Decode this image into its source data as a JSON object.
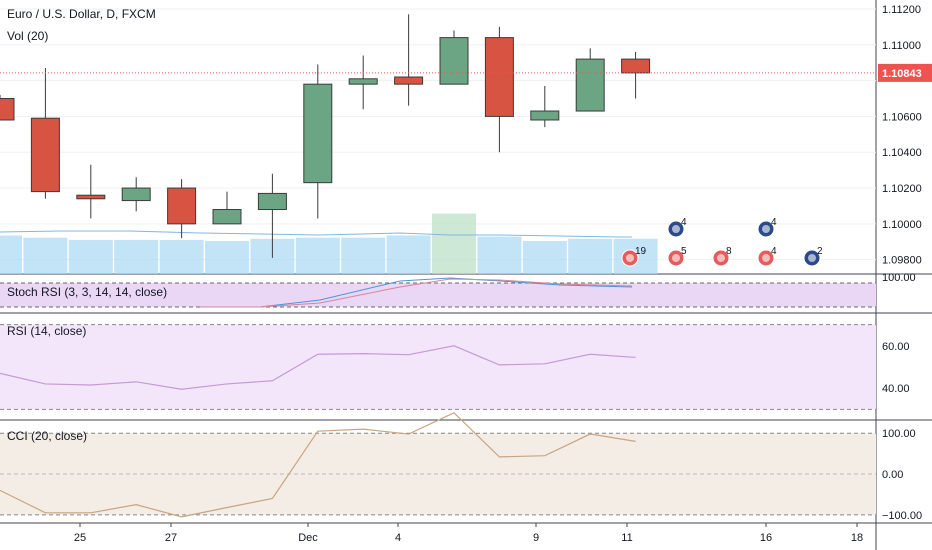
{
  "header": {
    "symbol_title": "Euro / U.S. Dollar, D, FXCM",
    "volume_title": "Vol (20)"
  },
  "price_axis": {
    "ticks": [
      "1.11200",
      "1.11000",
      "1.10800",
      "1.10600",
      "1.10400",
      "1.10200",
      "1.10000",
      "1.09800"
    ],
    "current_price": "1.10843",
    "current_price_color": "#ef5350"
  },
  "time_axis": {
    "labels": [
      "25",
      "27",
      "Dec",
      "4",
      "9",
      "11",
      "16",
      "18"
    ]
  },
  "colors": {
    "up": "#6ba583",
    "down": "#d75442",
    "stoch_bg": "#ead6f5",
    "rsi_bg": "#f3e6fb",
    "cci_bg": "#f3ede6",
    "volume": "#a9d7f4"
  },
  "events": {
    "row1": [
      {
        "label": "19",
        "icon": "us-flag-icon"
      },
      {
        "label": "5",
        "icon": "us-flag-icon"
      },
      {
        "label": "8",
        "icon": "us-flag-icon"
      },
      {
        "label": "4",
        "icon": "us-flag-icon"
      },
      {
        "label": "2",
        "icon": "eu-flag-icon"
      }
    ],
    "row2": [
      {
        "label": "4",
        "icon": "eu-flag-icon"
      },
      {
        "label": "4",
        "icon": "eu-flag-icon"
      }
    ]
  },
  "indicators": {
    "stoch": {
      "title": "Stoch RSI (3, 3, 14, 14, close)",
      "ticks": [
        "100.00"
      ]
    },
    "rsi": {
      "title": "RSI (14, close)",
      "ticks": [
        "60.00",
        "40.00"
      ]
    },
    "cci": {
      "title": "CCI (20, close)",
      "ticks": [
        "100.00",
        "0.00",
        "−100.00"
      ]
    }
  },
  "chart_data": {
    "type": "candlestick",
    "title": "Euro / U.S. Dollar, D, FXCM",
    "ylim": [
      1.0972,
      1.1125
    ],
    "candles": [
      {
        "o": 1.107,
        "h": 1.1072,
        "l": 1.1058,
        "c": 1.1058
      },
      {
        "o": 1.1059,
        "h": 1.1087,
        "l": 1.1014,
        "c": 1.1018
      },
      {
        "o": 1.1016,
        "h": 1.1033,
        "l": 1.1003,
        "c": 1.1014
      },
      {
        "o": 1.1013,
        "h": 1.1026,
        "l": 1.1007,
        "c": 1.102
      },
      {
        "o": 1.102,
        "h": 1.1025,
        "l": 1.0992,
        "c": 1.1
      },
      {
        "o": 1.1,
        "h": 1.1018,
        "l": 1.1,
        "c": 1.1008
      },
      {
        "o": 1.1008,
        "h": 1.1028,
        "l": 1.0981,
        "c": 1.1017
      },
      {
        "o": 1.1023,
        "h": 1.1089,
        "l": 1.1003,
        "c": 1.1078
      },
      {
        "o": 1.1078,
        "h": 1.1094,
        "l": 1.1064,
        "c": 1.1081
      },
      {
        "o": 1.1082,
        "h": 1.1117,
        "l": 1.1066,
        "c": 1.1078
      },
      {
        "o": 1.1078,
        "h": 1.1108,
        "l": 1.1078,
        "c": 1.1104
      },
      {
        "o": 1.1104,
        "h": 1.111,
        "l": 1.104,
        "c": 1.106
      },
      {
        "o": 1.1058,
        "h": 1.1077,
        "l": 1.1054,
        "c": 1.1063
      },
      {
        "o": 1.1063,
        "h": 1.1098,
        "l": 1.1063,
        "c": 1.1092
      },
      {
        "o": 1.1092,
        "h": 1.1096,
        "l": 1.107,
        "c": 1.10843
      }
    ],
    "volume": [],
    "stoch_rsi": {
      "k": [],
      "d": []
    },
    "rsi": [
      47,
      42,
      41.5,
      43,
      39.5,
      42,
      43.5,
      56,
      56.3,
      55.8,
      60,
      51,
      51.5,
      56,
      54.5
    ],
    "rsi_ylim": [
      25,
      75
    ],
    "cci": [
      -40,
      -95,
      -95,
      -75,
      -105,
      -82,
      -60,
      105,
      110,
      98,
      150,
      42,
      45,
      98,
      80
    ],
    "cci_ylim": [
      -120,
      130
    ]
  }
}
